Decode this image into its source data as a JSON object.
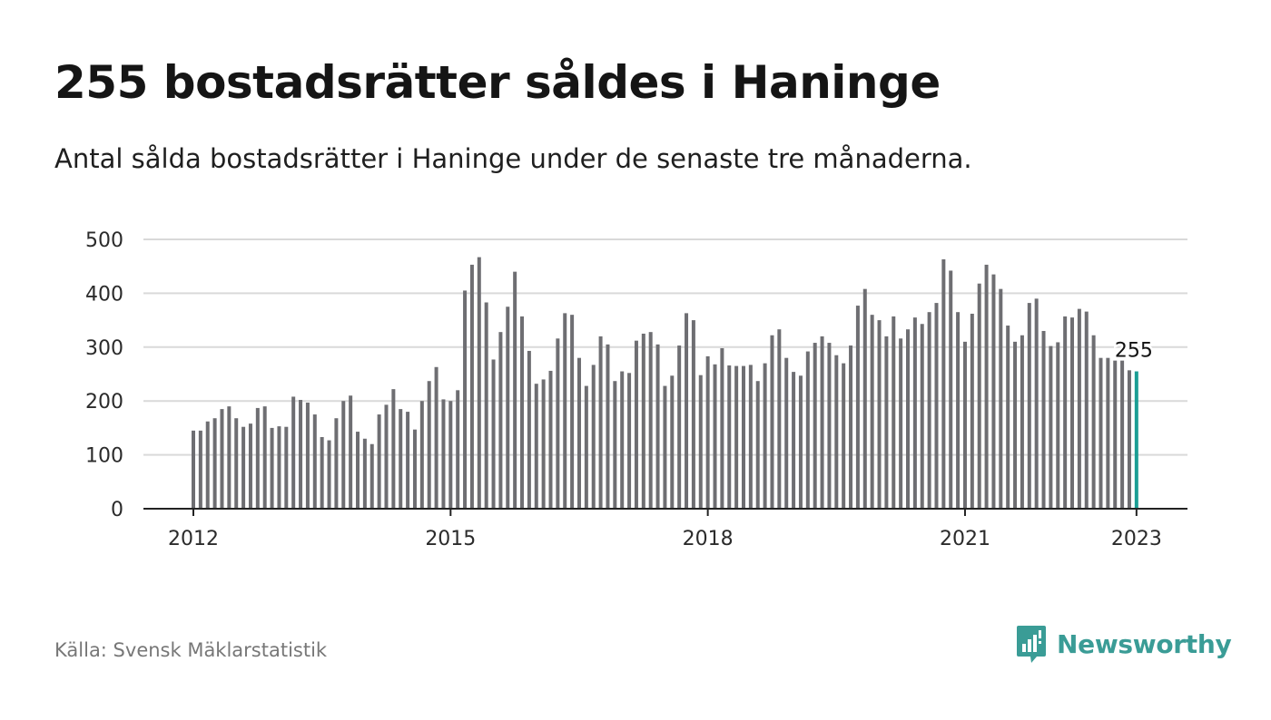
{
  "header": {
    "title": "255 bostadsrätter såldes i Haninge",
    "subtitle": "Antal sålda bostadsrätter i Haninge under de senaste tre månaderna."
  },
  "footer": {
    "source": "Källa: Svensk Mäklarstatistik",
    "brand": "Newsworthy"
  },
  "colors": {
    "bar": "#6e6e72",
    "highlight": "#1b9e94",
    "grid": "#d9d9d9",
    "axis": "#222222",
    "brand": "#3a9c96"
  },
  "chart_data": {
    "type": "bar",
    "title": "255 bostadsrätter såldes i Haninge",
    "xlabel": "",
    "ylabel": "",
    "ylim": [
      0,
      500
    ],
    "yticks": [
      "0",
      "100",
      "200",
      "300",
      "400",
      "500"
    ],
    "xticks": [
      "2012",
      "2015",
      "2018",
      "2021",
      "2023"
    ],
    "grid": true,
    "start": "2012-01",
    "highlight_label": "255",
    "values": [
      145,
      145,
      162,
      168,
      185,
      190,
      168,
      152,
      158,
      187,
      190,
      150,
      153,
      152,
      208,
      202,
      197,
      175,
      133,
      127,
      168,
      200,
      210,
      143,
      130,
      120,
      175,
      193,
      222,
      185,
      180,
      147,
      200,
      237,
      263,
      203,
      200,
      220,
      405,
      453,
      467,
      383,
      277,
      328,
      375,
      440,
      357,
      293,
      232,
      240,
      256,
      316,
      363,
      360,
      280,
      228,
      267,
      320,
      305,
      237,
      255,
      252,
      312,
      325,
      328,
      305,
      228,
      247,
      303,
      363,
      350,
      248,
      283,
      268,
      298,
      266,
      265,
      265,
      267,
      237,
      270,
      322,
      333,
      280,
      254,
      247,
      292,
      308,
      320,
      308,
      285,
      270,
      303,
      377,
      408,
      360,
      350,
      320,
      357,
      316,
      333,
      355,
      343,
      365,
      382,
      463,
      442,
      365,
      310,
      362,
      418,
      453,
      435,
      408,
      340,
      310,
      322,
      382,
      390,
      330,
      302,
      309,
      357,
      355,
      371,
      366,
      322,
      280,
      280,
      275,
      275,
      257,
      255
    ]
  }
}
